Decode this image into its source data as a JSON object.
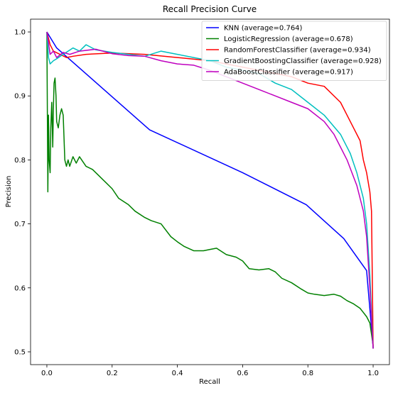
{
  "chart_data": {
    "type": "line",
    "title": "Recall Precision Curve",
    "xlabel": "Recall",
    "ylabel": "Precision",
    "xlim": [
      -0.05,
      1.05
    ],
    "ylim": [
      0.48,
      1.02
    ],
    "xticks": [
      0.0,
      0.2,
      0.4,
      0.6,
      0.8,
      1.0
    ],
    "xtick_labels": [
      "0.0",
      "0.2",
      "0.4",
      "0.6",
      "0.8",
      "1.0"
    ],
    "yticks": [
      0.5,
      0.6,
      0.7,
      0.8,
      0.9,
      1.0
    ],
    "ytick_labels": [
      "0.5",
      "0.6",
      "0.7",
      "0.8",
      "0.9",
      "1.0"
    ],
    "grid": false,
    "legend_position": "top-right",
    "series": [
      {
        "name": "KNN (average=0.764)",
        "color": "#0000ff",
        "x": [
          0.0,
          0.03,
          0.315,
          0.6,
          0.795,
          0.91,
          0.98,
          1.0
        ],
        "y": [
          1.0,
          0.975,
          0.847,
          0.78,
          0.73,
          0.677,
          0.627,
          0.507
        ]
      },
      {
        "name": "LogisticRegression (average=0.678)",
        "color": "#008000",
        "x": [
          0.0,
          0.003,
          0.005,
          0.007,
          0.01,
          0.012,
          0.015,
          0.018,
          0.02,
          0.022,
          0.025,
          0.028,
          0.03,
          0.035,
          0.04,
          0.045,
          0.05,
          0.055,
          0.06,
          0.065,
          0.07,
          0.08,
          0.09,
          0.1,
          0.12,
          0.14,
          0.16,
          0.18,
          0.2,
          0.22,
          0.25,
          0.27,
          0.3,
          0.32,
          0.35,
          0.38,
          0.4,
          0.42,
          0.45,
          0.48,
          0.5,
          0.52,
          0.55,
          0.58,
          0.6,
          0.62,
          0.65,
          0.68,
          0.7,
          0.72,
          0.75,
          0.78,
          0.8,
          0.82,
          0.85,
          0.88,
          0.9,
          0.92,
          0.94,
          0.96,
          0.98,
          0.99,
          1.0
        ],
        "y": [
          1.0,
          0.75,
          0.87,
          0.8,
          0.78,
          0.85,
          0.89,
          0.82,
          0.88,
          0.92,
          0.928,
          0.9,
          0.86,
          0.85,
          0.87,
          0.88,
          0.87,
          0.8,
          0.79,
          0.8,
          0.79,
          0.805,
          0.795,
          0.805,
          0.79,
          0.785,
          0.775,
          0.765,
          0.755,
          0.74,
          0.73,
          0.72,
          0.71,
          0.705,
          0.7,
          0.68,
          0.672,
          0.665,
          0.658,
          0.658,
          0.66,
          0.662,
          0.652,
          0.648,
          0.642,
          0.63,
          0.628,
          0.63,
          0.625,
          0.615,
          0.608,
          0.598,
          0.592,
          0.59,
          0.588,
          0.59,
          0.587,
          0.58,
          0.575,
          0.568,
          0.555,
          0.545,
          0.51
        ]
      },
      {
        "name": "RandomForestClassifier (average=0.934)",
        "color": "#ff0000",
        "x": [
          0.0,
          0.01,
          0.02,
          0.04,
          0.06,
          0.08,
          0.12,
          0.2,
          0.3,
          0.4,
          0.5,
          0.6,
          0.7,
          0.75,
          0.8,
          0.85,
          0.9,
          0.92,
          0.94,
          0.96,
          0.97,
          0.98,
          0.99,
          0.995,
          1.0
        ],
        "y": [
          1.0,
          0.98,
          0.97,
          0.965,
          0.96,
          0.962,
          0.965,
          0.967,
          0.965,
          0.96,
          0.955,
          0.945,
          0.935,
          0.93,
          0.92,
          0.915,
          0.89,
          0.87,
          0.85,
          0.83,
          0.8,
          0.78,
          0.75,
          0.72,
          0.505
        ]
      },
      {
        "name": "GradientBoostingClassifier (average=0.928)",
        "color": "#00bfbf",
        "x": [
          0.0,
          0.005,
          0.01,
          0.02,
          0.03,
          0.05,
          0.08,
          0.1,
          0.12,
          0.15,
          0.2,
          0.25,
          0.3,
          0.35,
          0.4,
          0.45,
          0.5,
          0.55,
          0.6,
          0.65,
          0.7,
          0.75,
          0.8,
          0.85,
          0.9,
          0.93,
          0.95,
          0.97,
          0.98,
          0.99,
          1.0
        ],
        "y": [
          1.0,
          0.96,
          0.95,
          0.955,
          0.958,
          0.965,
          0.975,
          0.97,
          0.98,
          0.972,
          0.968,
          0.965,
          0.962,
          0.97,
          0.965,
          0.96,
          0.955,
          0.945,
          0.94,
          0.935,
          0.92,
          0.91,
          0.89,
          0.87,
          0.84,
          0.81,
          0.78,
          0.74,
          0.7,
          0.62,
          0.505
        ]
      },
      {
        "name": "AdaBoostClassifier (average=0.917)",
        "color": "#bf00bf",
        "x": [
          0.0,
          0.01,
          0.02,
          0.03,
          0.05,
          0.07,
          0.1,
          0.15,
          0.2,
          0.25,
          0.3,
          0.35,
          0.4,
          0.45,
          0.5,
          0.55,
          0.6,
          0.65,
          0.7,
          0.75,
          0.8,
          0.85,
          0.88,
          0.9,
          0.92,
          0.95,
          0.97,
          0.98,
          0.99,
          1.0
        ],
        "y": [
          1.0,
          0.965,
          0.97,
          0.96,
          0.968,
          0.965,
          0.97,
          0.973,
          0.966,
          0.963,
          0.962,
          0.955,
          0.95,
          0.948,
          0.94,
          0.93,
          0.92,
          0.91,
          0.9,
          0.89,
          0.88,
          0.86,
          0.84,
          0.82,
          0.8,
          0.76,
          0.72,
          0.68,
          0.6,
          0.505
        ]
      }
    ]
  }
}
